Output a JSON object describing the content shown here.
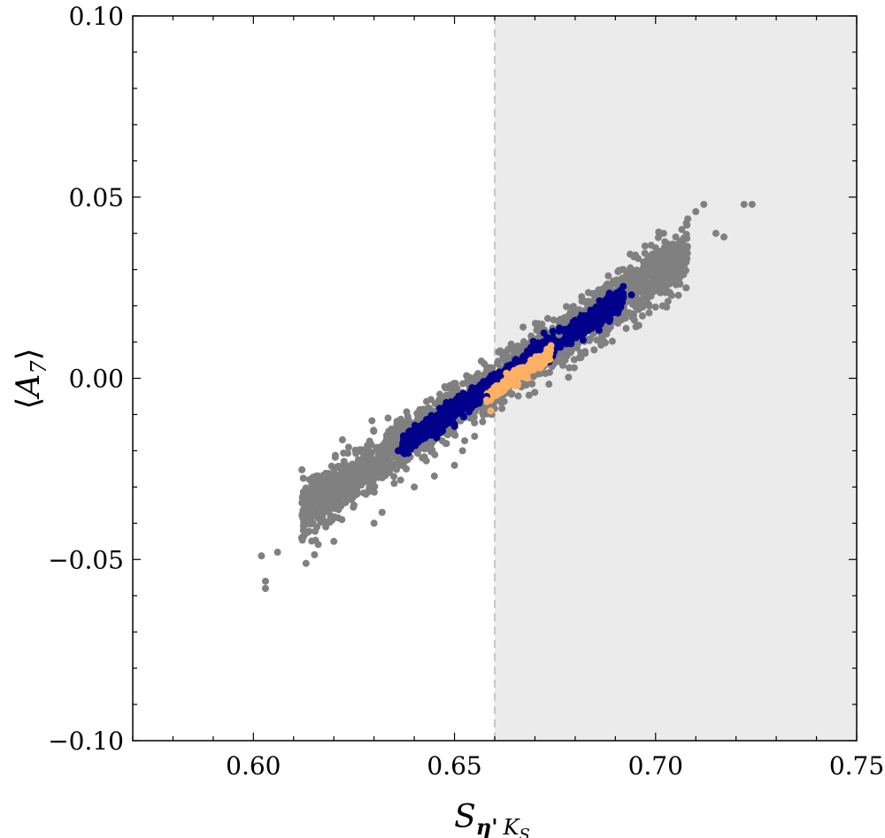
{
  "chart_data": {
    "type": "scatter",
    "title": "",
    "xlabel": {
      "main": "S",
      "sub_bold": "η'",
      "sub_italic": "K",
      "sub_sub": "S"
    },
    "ylabel": {
      "open": "⟨",
      "main": "A",
      "sub": "7",
      "close": "⟩"
    },
    "xlim": [
      0.57,
      0.75
    ],
    "ylim": [
      -0.1,
      0.1
    ],
    "x_ticks": [
      0.6,
      0.65,
      0.7,
      0.75
    ],
    "x_tick_labels": [
      "0.60",
      "0.65",
      "0.70",
      "0.75"
    ],
    "y_ticks": [
      -0.1,
      -0.05,
      0.0,
      0.05,
      0.1
    ],
    "y_tick_labels": [
      "−0.10",
      "−0.05",
      "0.00",
      "0.05",
      "0.10"
    ],
    "x_minor_step": 0.01,
    "y_minor_step": 0.01,
    "shaded_region": {
      "x_from": 0.66,
      "x_to": 0.75,
      "color": "#ebebeb"
    },
    "reference_line": {
      "x": 0.66,
      "style": "dashed",
      "color": "#c8c8c8"
    },
    "grid": false,
    "colors": {
      "gray": "#808080",
      "blue": "#00008b",
      "orange": "#ffb062"
    },
    "series": [
      {
        "color": "gray",
        "description_points": [
          [
            0.602,
            -0.049
          ],
          [
            0.603,
            -0.058
          ],
          [
            0.603,
            -0.056
          ],
          [
            0.606,
            -0.048
          ],
          [
            0.612,
            -0.044
          ],
          [
            0.616,
            -0.037
          ],
          [
            0.618,
            -0.041
          ],
          [
            0.62,
            -0.045
          ],
          [
            0.622,
            -0.039
          ],
          [
            0.625,
            -0.035
          ],
          [
            0.628,
            -0.032
          ],
          [
            0.63,
            -0.04
          ],
          [
            0.632,
            -0.037
          ],
          [
            0.635,
            -0.029
          ],
          [
            0.638,
            -0.025
          ],
          [
            0.64,
            -0.03
          ],
          [
            0.642,
            -0.022
          ],
          [
            0.645,
            -0.027
          ],
          [
            0.648,
            -0.018
          ],
          [
            0.65,
            -0.024
          ],
          [
            0.652,
            -0.02
          ],
          [
            0.655,
            -0.016
          ],
          [
            0.657,
            -0.012
          ],
          [
            0.659,
            -0.008
          ],
          [
            0.676,
            0.012
          ],
          [
            0.68,
            0.018
          ],
          [
            0.684,
            0.021
          ],
          [
            0.688,
            0.026
          ],
          [
            0.692,
            0.03
          ],
          [
            0.695,
            0.034
          ],
          [
            0.698,
            0.029
          ],
          [
            0.7,
            0.036
          ],
          [
            0.702,
            0.04
          ],
          [
            0.705,
            0.039
          ],
          [
            0.708,
            0.044
          ],
          [
            0.71,
            0.046
          ],
          [
            0.712,
            0.048
          ],
          [
            0.715,
            0.04
          ],
          [
            0.717,
            0.039
          ],
          [
            0.722,
            0.048
          ],
          [
            0.724,
            0.048
          ]
        ]
      },
      {
        "color": "blue",
        "description_points": [
          [
            0.636,
            -0.02
          ],
          [
            0.64,
            -0.017
          ],
          [
            0.645,
            -0.013
          ],
          [
            0.65,
            -0.01
          ],
          [
            0.655,
            -0.007
          ],
          [
            0.658,
            -0.005
          ],
          [
            0.668,
            0.006
          ],
          [
            0.672,
            0.01
          ],
          [
            0.676,
            0.013
          ],
          [
            0.68,
            0.016
          ],
          [
            0.685,
            0.019
          ],
          [
            0.69,
            0.021
          ],
          [
            0.694,
            0.023
          ]
        ]
      },
      {
        "color": "orange",
        "description_points": [
          [
            0.658,
            -0.006
          ],
          [
            0.659,
            -0.009
          ],
          [
            0.661,
            -0.003
          ],
          [
            0.663,
            -0.001
          ],
          [
            0.665,
            0.001
          ],
          [
            0.667,
            0.003
          ],
          [
            0.669,
            0.005
          ],
          [
            0.671,
            0.006
          ],
          [
            0.673,
            0.008
          ],
          [
            0.674,
            0.009
          ]
        ]
      }
    ]
  }
}
